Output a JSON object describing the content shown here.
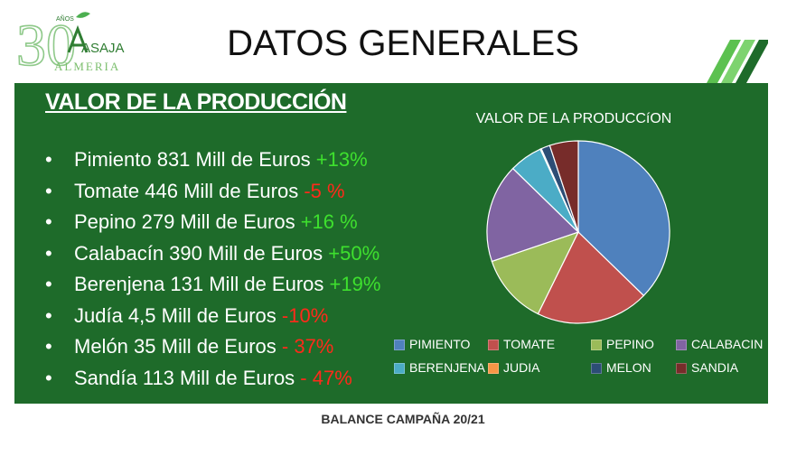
{
  "logo": {
    "number": "30",
    "years_label": "AÑOS",
    "brand": "ASAJA",
    "region": "ALMERIA"
  },
  "header": {
    "title": "DATOS GENERALES"
  },
  "section": {
    "title": "VALOR DE LA PRODUCCIÓN"
  },
  "bullets": [
    {
      "text": "Pimiento 831 Mill de Euros ",
      "change": "+13%",
      "trend": "pos"
    },
    {
      "text": "Tomate 446 Mill de Euros ",
      "change": "-5 %",
      "trend": "neg"
    },
    {
      "text": "Pepino 279 Mill de Euros ",
      "change": "+16 %",
      "trend": "pos"
    },
    {
      "text": "Calabacín 390 Mill de Euros ",
      "change": "+50%",
      "trend": "pos"
    },
    {
      "text": "Berenjena 131 Mill de Euros ",
      "change": "+19%",
      "trend": "pos"
    },
    {
      "text": "Judía 4,5 Mill de Euros ",
      "change": "-10%",
      "trend": "neg"
    },
    {
      "text": "Melón  35 Mill de Euros ",
      "change": "- 37%",
      "trend": "neg"
    },
    {
      "text": "Sandía  113 Mill de Euros ",
      "change": "- 47%",
      "trend": "neg"
    }
  ],
  "chart_data": {
    "type": "pie",
    "title": "VALOR DE LA PRODUCCíON",
    "categories": [
      "PIMIENTO",
      "TOMATE",
      "PEPINO",
      "CALABACIN",
      "BERENJENA",
      "JUDIA",
      "MELON",
      "SANDIA"
    ],
    "values": [
      831,
      446,
      279,
      390,
      131,
      4.5,
      35,
      113
    ],
    "colors": [
      "#4f81bd",
      "#c0504d",
      "#9bbb59",
      "#8064a2",
      "#4bacc6",
      "#f79646",
      "#2c4d75",
      "#772c2a"
    ],
    "legend_position": "bottom"
  },
  "colors": {
    "panel": "#1e6b2a",
    "positive": "#3ee02e",
    "negative": "#ff2a1a",
    "stripe_light": "#5cc150",
    "stripe_dark": "#1e6b2a"
  },
  "footer": {
    "text": "BALANCE CAMPAÑA 20/21"
  }
}
